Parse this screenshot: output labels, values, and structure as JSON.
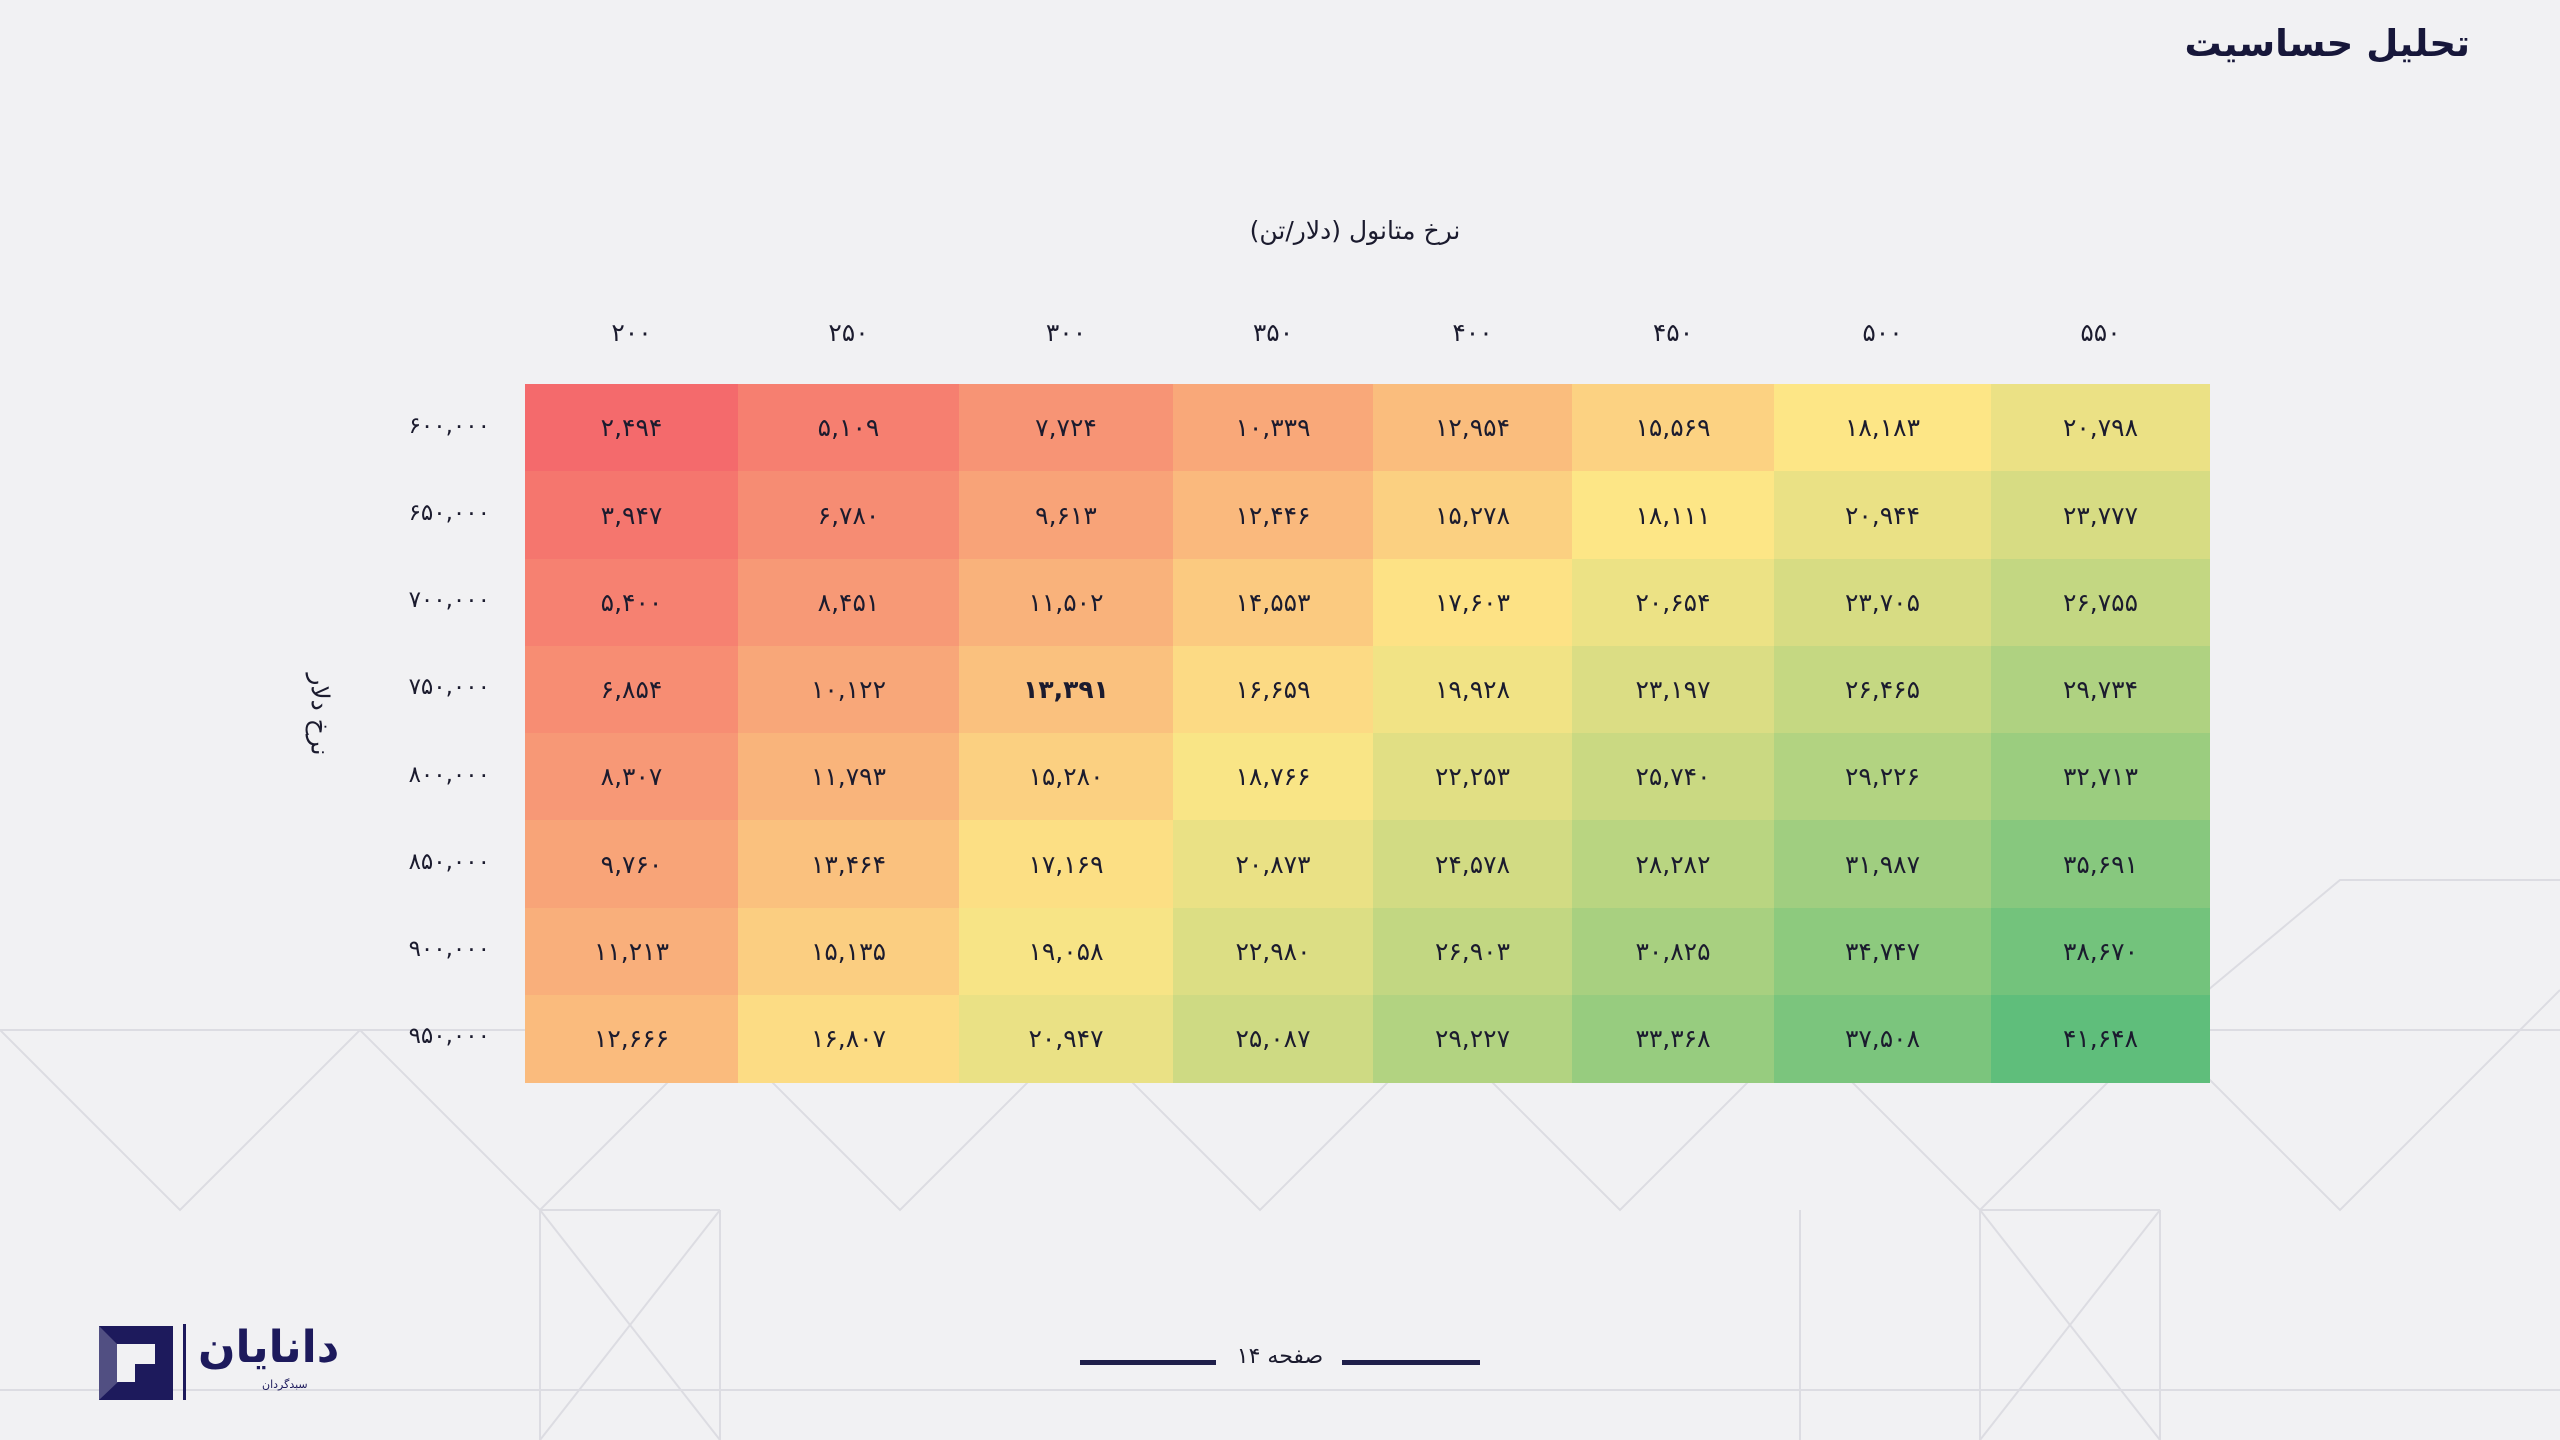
{
  "page": {
    "title": "تحلیل حساسیت",
    "footer_page": "صفحه ۱۴"
  },
  "logo": {
    "name": "دانایان",
    "subtitle": "سبدگردان"
  },
  "chart_data": {
    "type": "heatmap",
    "x_axis_label": "نرخ متانول (دلار/تن)",
    "y_axis_label": "نرخ دلار",
    "x_labels": [
      "۲۰۰",
      "۲۵۰",
      "۳۰۰",
      "۳۵۰",
      "۴۰۰",
      "۴۵۰",
      "۵۰۰",
      "۵۵۰"
    ],
    "y_labels": [
      "۶۰۰,۰۰۰",
      "۶۵۰,۰۰۰",
      "۷۰۰,۰۰۰",
      "۷۵۰,۰۰۰",
      "۸۰۰,۰۰۰",
      "۸۵۰,۰۰۰",
      "۹۰۰,۰۰۰",
      "۹۵۰,۰۰۰"
    ],
    "x": [
      200,
      250,
      300,
      350,
      400,
      450,
      500,
      550
    ],
    "y": [
      600000,
      650000,
      700000,
      750000,
      800000,
      850000,
      900000,
      950000
    ],
    "values": [
      [
        2494,
        5109,
        7724,
        10339,
        12954,
        15569,
        18183,
        20798
      ],
      [
        3947,
        6780,
        9613,
        12446,
        15278,
        18111,
        20944,
        23777
      ],
      [
        5400,
        8451,
        11502,
        14553,
        17603,
        20654,
        23705,
        26755
      ],
      [
        6854,
        10122,
        13391,
        16659,
        19928,
        23197,
        26465,
        29734
      ],
      [
        8307,
        11793,
        15280,
        18766,
        22253,
        25740,
        29226,
        32713
      ],
      [
        9760,
        13464,
        17169,
        20873,
        24578,
        28282,
        31987,
        35691
      ],
      [
        11213,
        15135,
        19058,
        22980,
        26903,
        30825,
        34747,
        38670
      ],
      [
        12666,
        16807,
        20947,
        25087,
        29227,
        33368,
        37508,
        41648
      ]
    ],
    "cell_labels": [
      [
        "۲,۴۹۴",
        "۵,۱۰۹",
        "۷,۷۲۴",
        "۱۰,۳۳۹",
        "۱۲,۹۵۴",
        "۱۵,۵۶۹",
        "۱۸,۱۸۳",
        "۲۰,۷۹۸"
      ],
      [
        "۳,۹۴۷",
        "۶,۷۸۰",
        "۹,۶۱۳",
        "۱۲,۴۴۶",
        "۱۵,۲۷۸",
        "۱۸,۱۱۱",
        "۲۰,۹۴۴",
        "۲۳,۷۷۷"
      ],
      [
        "۵,۴۰۰",
        "۸,۴۵۱",
        "۱۱,۵۰۲",
        "۱۴,۵۵۳",
        "۱۷,۶۰۳",
        "۲۰,۶۵۴",
        "۲۳,۷۰۵",
        "۲۶,۷۵۵"
      ],
      [
        "۶,۸۵۴",
        "۱۰,۱۲۲",
        "۱۳,۳۹۱",
        "۱۶,۶۵۹",
        "۱۹,۹۲۸",
        "۲۳,۱۹۷",
        "۲۶,۴۶۵",
        "۲۹,۷۳۴"
      ],
      [
        "۸,۳۰۷",
        "۱۱,۷۹۳",
        "۱۵,۲۸۰",
        "۱۸,۷۶۶",
        "۲۲,۲۵۳",
        "۲۵,۷۴۰",
        "۲۹,۲۲۶",
        "۳۲,۷۱۳"
      ],
      [
        "۹,۷۶۰",
        "۱۳,۴۶۴",
        "۱۷,۱۶۹",
        "۲۰,۸۷۳",
        "۲۴,۵۷۸",
        "۲۸,۲۸۲",
        "۳۱,۹۸۷",
        "۳۵,۶۹۱"
      ],
      [
        "۱۱,۲۱۳",
        "۱۵,۱۳۵",
        "۱۹,۰۵۸",
        "۲۲,۹۸۰",
        "۲۶,۹۰۳",
        "۳۰,۸۲۵",
        "۳۴,۷۴۷",
        "۳۸,۶۷۰"
      ],
      [
        "۱۲,۶۶۶",
        "۱۶,۸۰۷",
        "۲۰,۹۴۷",
        "۲۵,۰۸۷",
        "۲۹,۲۲۷",
        "۳۳,۳۶۸",
        "۳۷,۵۰۸",
        "۴۱,۶۴۸"
      ]
    ],
    "highlight_cell": {
      "row": 3,
      "col": 2
    },
    "color_scale": [
      "#f46a6c",
      "#fde686",
      "#5fbe7b"
    ],
    "color_domain": [
      2494,
      18111,
      41648
    ]
  }
}
